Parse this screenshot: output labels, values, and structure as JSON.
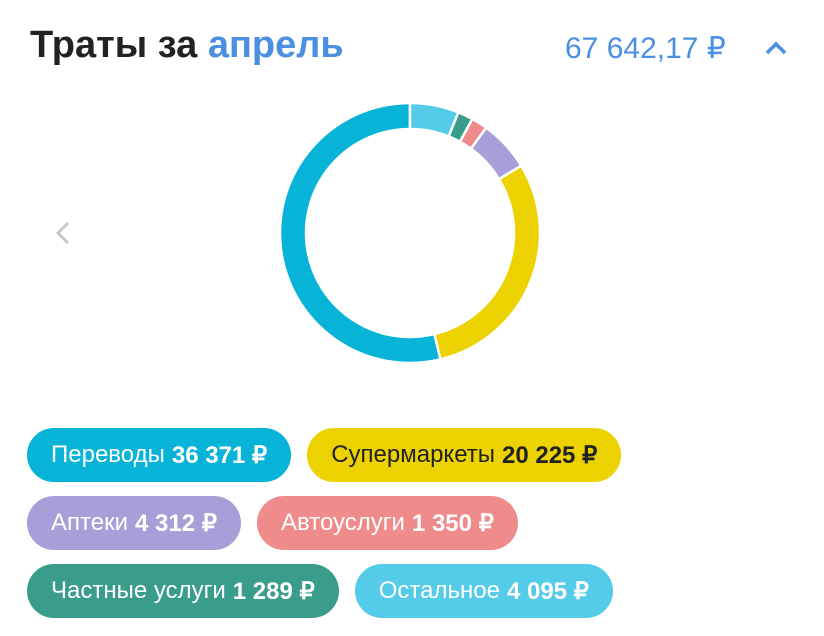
{
  "chart_data": {
    "type": "pie",
    "title": "Траты за",
    "title_highlight": "апрель",
    "total": "67 642,17 ₽",
    "categories": [
      "Переводы",
      "Супермаркеты",
      "Аптеки",
      "Автоуслуги",
      "Частные услуги",
      "Остальное"
    ],
    "values": [
      36371,
      20225,
      4312,
      1350,
      1289,
      4095
    ],
    "value_labels": [
      "36 371 ₽",
      "20 225 ₽",
      "4 312 ₽",
      "1 350 ₽",
      "1 289 ₽",
      "4 095 ₽"
    ],
    "colors": [
      "#07b4d7",
      "#ecd200",
      "#a99fd8",
      "#ef8b8b",
      "#3a9d8c",
      "#55cbea"
    ],
    "donut": true
  }
}
